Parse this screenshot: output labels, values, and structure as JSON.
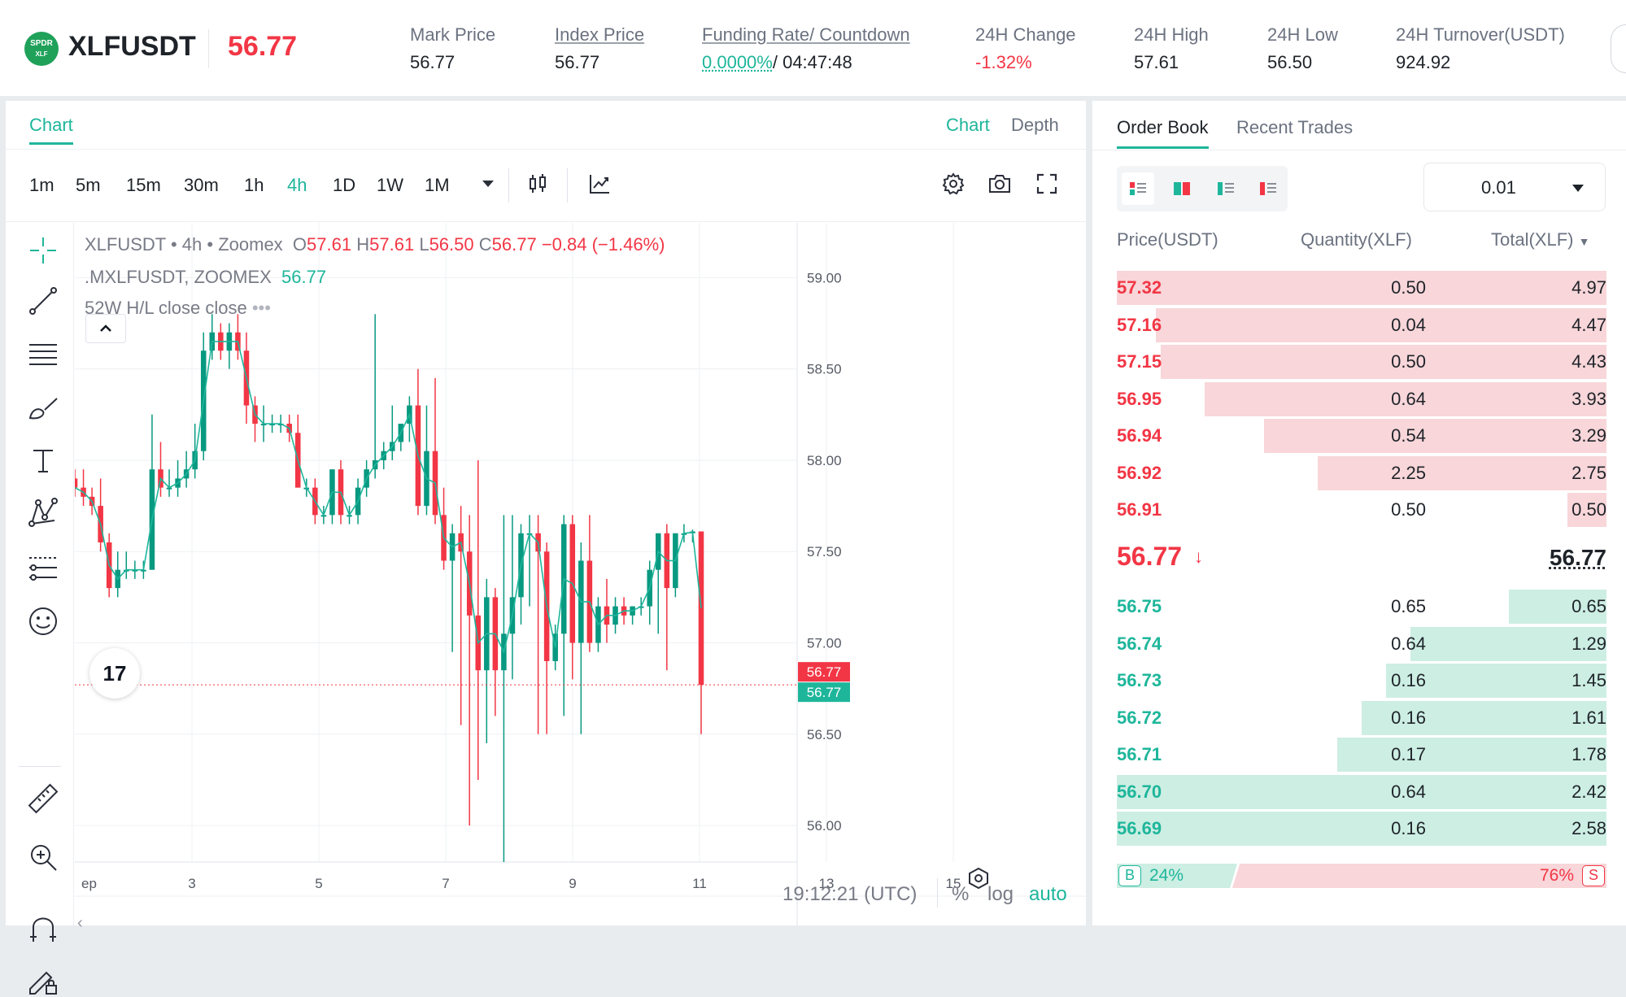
{
  "header": {
    "logo_text": "SPDR",
    "logo_sub": "XLF",
    "symbol": "XLFUSDT",
    "last_price": "56.77",
    "stats": [
      {
        "label": "Mark Price",
        "value": "56.77"
      },
      {
        "label": "Index Price",
        "value": "56.77"
      },
      {
        "label": "Funding Rate/ Countdown",
        "value_rate": "0.0000%",
        "value_countdown": "/ 04:47:48"
      },
      {
        "label": "24H Change",
        "value": "-1.32%"
      },
      {
        "label": "24H High",
        "value": "57.61"
      },
      {
        "label": "24H Low",
        "value": "56.50"
      },
      {
        "label": "24H Turnover(USDT)",
        "value": "924.92"
      }
    ]
  },
  "chart_panel": {
    "tab": "Chart",
    "right_tabs": [
      "Chart",
      "Depth"
    ],
    "timeframes": [
      "1m",
      "5m",
      "15m",
      "30m",
      "1h",
      "4h",
      "1D",
      "1W",
      "1M"
    ],
    "active_timeframe": "4h",
    "legend": {
      "symbol": "XLFUSDT",
      "interval": "4h",
      "exchange": "Zoomex",
      "o_label": "O",
      "o": "57.61",
      "h_label": "H",
      "h": "57.61",
      "l_label": "L",
      "l": "56.50",
      "c_label": "C",
      "c": "56.77",
      "change": "−0.84 (−1.46%)",
      "index_label": ".MXLFUSDT, ZOOMEX",
      "index_value": "56.77",
      "study": "52W H/L close close"
    },
    "price_badge_red": "56.77",
    "price_badge_teal": "56.77",
    "bottom": {
      "time": "19:12:21 (UTC)",
      "percent": "%",
      "log": "log",
      "auto": "auto"
    },
    "tv_logo": "17"
  },
  "chart_data": {
    "type": "candlestick",
    "title": "",
    "x_tick_labels": [
      "ep",
      "3",
      "5",
      "7",
      "9",
      "11",
      "13",
      "15"
    ],
    "y_tick_labels": [
      "59.00",
      "58.50",
      "58.00",
      "57.50",
      "57.00",
      "56.50",
      "56.00"
    ],
    "ylim": [
      55.8,
      59.3
    ],
    "grid": true,
    "up_color": "#089981",
    "down_color": "#f23645",
    "ma_color": "#1eb69b",
    "last_value": 56.77,
    "ohlc": [
      [
        57.9,
        57.95,
        57.8,
        57.85
      ],
      [
        57.85,
        57.95,
        57.75,
        57.8
      ],
      [
        57.8,
        57.85,
        57.7,
        57.75
      ],
      [
        57.75,
        57.9,
        57.5,
        57.55
      ],
      [
        57.55,
        57.6,
        57.25,
        57.3
      ],
      [
        57.3,
        57.5,
        57.25,
        57.4
      ],
      [
        57.4,
        57.5,
        57.35,
        57.4
      ],
      [
        57.4,
        57.45,
        57.35,
        57.4
      ],
      [
        57.4,
        57.45,
        57.35,
        57.4
      ],
      [
        57.4,
        58.25,
        57.4,
        57.95
      ],
      [
        57.95,
        58.1,
        57.8,
        57.85
      ],
      [
        57.85,
        57.95,
        57.8,
        57.85
      ],
      [
        57.85,
        58.0,
        57.8,
        57.9
      ],
      [
        57.9,
        58.05,
        57.85,
        57.95
      ],
      [
        57.95,
        58.2,
        57.9,
        58.05
      ],
      [
        58.05,
        58.7,
        58.0,
        58.6
      ],
      [
        58.6,
        58.8,
        58.55,
        58.7
      ],
      [
        58.7,
        58.75,
        58.55,
        58.6
      ],
      [
        58.6,
        58.75,
        58.5,
        58.7
      ],
      [
        58.7,
        58.8,
        58.55,
        58.6
      ],
      [
        58.6,
        58.7,
        58.2,
        58.3
      ],
      [
        58.3,
        58.35,
        58.1,
        58.2
      ],
      [
        58.2,
        58.3,
        58.1,
        58.2
      ],
      [
        58.2,
        58.25,
        58.15,
        58.2
      ],
      [
        58.2,
        58.25,
        58.15,
        58.2
      ],
      [
        58.2,
        58.25,
        58.1,
        58.15
      ],
      [
        58.15,
        58.25,
        57.85,
        57.85
      ],
      [
        57.85,
        57.9,
        57.8,
        57.85
      ],
      [
        57.85,
        57.9,
        57.65,
        57.7
      ],
      [
        57.7,
        57.75,
        57.65,
        57.7
      ],
      [
        57.7,
        57.95,
        57.65,
        57.95
      ],
      [
        57.95,
        58.0,
        57.65,
        57.7
      ],
      [
        57.7,
        57.75,
        57.65,
        57.7
      ],
      [
        57.7,
        57.9,
        57.65,
        57.85
      ],
      [
        57.85,
        58.0,
        57.8,
        57.95
      ],
      [
        57.95,
        58.8,
        57.9,
        58.0
      ],
      [
        58.0,
        58.1,
        57.95,
        58.05
      ],
      [
        58.05,
        58.3,
        58.0,
        58.1
      ],
      [
        58.1,
        58.2,
        58.05,
        58.2
      ],
      [
        58.2,
        58.35,
        58.1,
        58.3
      ],
      [
        58.3,
        58.5,
        57.7,
        57.75
      ],
      [
        57.75,
        58.3,
        57.7,
        58.05
      ],
      [
        58.05,
        58.45,
        57.65,
        57.7
      ],
      [
        57.7,
        57.85,
        57.4,
        57.45
      ],
      [
        57.45,
        57.65,
        56.95,
        57.6
      ],
      [
        57.6,
        57.75,
        56.55,
        57.5
      ],
      [
        57.5,
        57.7,
        56.0,
        57.15
      ],
      [
        57.15,
        58.0,
        56.25,
        56.85
      ],
      [
        56.85,
        57.35,
        56.45,
        57.25
      ],
      [
        57.25,
        57.3,
        56.6,
        56.85
      ],
      [
        56.85,
        57.7,
        55.8,
        57.05
      ],
      [
        57.05,
        57.7,
        56.8,
        57.25
      ],
      [
        57.25,
        57.65,
        57.1,
        57.6
      ],
      [
        57.6,
        57.7,
        57.2,
        57.6
      ],
      [
        57.6,
        57.7,
        56.5,
        57.5
      ],
      [
        57.5,
        57.55,
        56.5,
        56.9
      ],
      [
        56.9,
        57.1,
        56.85,
        57.05
      ],
      [
        57.05,
        57.7,
        56.6,
        57.65
      ],
      [
        57.65,
        57.7,
        56.8,
        57.0
      ],
      [
        57.0,
        57.55,
        56.5,
        57.45
      ],
      [
        57.45,
        57.7,
        56.95,
        57.0
      ],
      [
        57.0,
        57.25,
        56.95,
        57.2
      ],
      [
        57.2,
        57.35,
        57.0,
        57.1
      ],
      [
        57.1,
        57.25,
        57.05,
        57.2
      ],
      [
        57.2,
        57.25,
        57.1,
        57.15
      ],
      [
        57.15,
        57.2,
        57.1,
        57.2
      ],
      [
        57.2,
        57.25,
        57.15,
        57.2
      ],
      [
        57.2,
        57.45,
        57.1,
        57.4
      ],
      [
        57.4,
        57.6,
        57.05,
        57.6
      ],
      [
        57.6,
        57.65,
        56.85,
        57.3
      ],
      [
        57.3,
        57.6,
        57.25,
        57.6
      ],
      [
        57.6,
        57.65,
        57.55,
        57.6
      ],
      [
        57.6,
        57.62,
        57.55,
        57.61
      ],
      [
        57.61,
        57.61,
        56.5,
        56.77
      ]
    ]
  },
  "order_panel": {
    "tabs": [
      "Order Book",
      "Recent Trades"
    ],
    "precision": "0.01",
    "columns": [
      "Price(USDT)",
      "Quantity(XLF)",
      "Total(XLF)"
    ],
    "asks": [
      {
        "price": "57.32",
        "qty": "0.50",
        "total": "4.97",
        "depth": 1.0
      },
      {
        "price": "57.16",
        "qty": "0.04",
        "total": "4.47",
        "depth": 0.92
      },
      {
        "price": "57.15",
        "qty": "0.50",
        "total": "4.43",
        "depth": 0.91
      },
      {
        "price": "56.95",
        "qty": "0.64",
        "total": "3.93",
        "depth": 0.82
      },
      {
        "price": "56.94",
        "qty": "0.54",
        "total": "3.29",
        "depth": 0.7
      },
      {
        "price": "56.92",
        "qty": "2.25",
        "total": "2.75",
        "depth": 0.59
      },
      {
        "price": "56.91",
        "qty": "0.50",
        "total": "0.50",
        "depth": 0.08
      }
    ],
    "mid_price": "56.77",
    "mid_arrow": "↓",
    "mark_price": "56.77",
    "bids": [
      {
        "price": "56.75",
        "qty": "0.65",
        "total": "0.65",
        "depth": 0.2
      },
      {
        "price": "56.74",
        "qty": "0.64",
        "total": "1.29",
        "depth": 0.4
      },
      {
        "price": "56.73",
        "qty": "0.16",
        "total": "1.45",
        "depth": 0.45
      },
      {
        "price": "56.72",
        "qty": "0.16",
        "total": "1.61",
        "depth": 0.5
      },
      {
        "price": "56.71",
        "qty": "0.17",
        "total": "1.78",
        "depth": 0.55
      },
      {
        "price": "56.70",
        "qty": "0.64",
        "total": "2.42",
        "depth": 1.0
      },
      {
        "price": "56.69",
        "qty": "0.16",
        "total": "2.58",
        "depth": 1.0
      }
    ],
    "ratio": {
      "buy_label": "B",
      "buy_pct": "24%",
      "sell_label": "S",
      "sell_pct": "76%"
    }
  }
}
